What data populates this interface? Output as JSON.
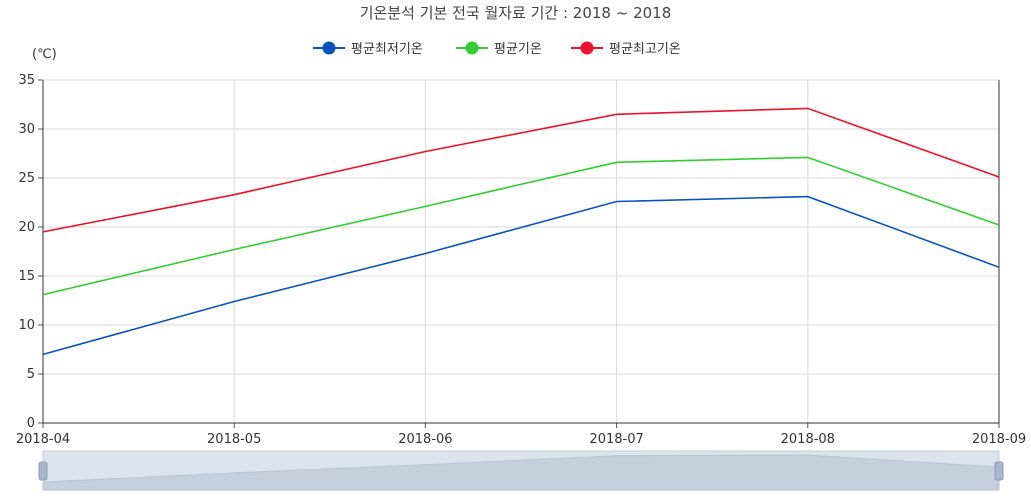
{
  "chart_data": {
    "type": "line",
    "title": "기온분석 기본 전국 월자료 기간 : 2018 ~ 2018",
    "ylabel": "(℃)",
    "xlabel": "",
    "categories": [
      "2018-04",
      "2018-05",
      "2018-06",
      "2018-07",
      "2018-08",
      "2018-09"
    ],
    "ylim": [
      0,
      35
    ],
    "yticks": [
      "0",
      "5",
      "10",
      "15",
      "20",
      "25",
      "30",
      "35"
    ],
    "grid": true,
    "legend_position": "top-center",
    "series": [
      {
        "name": "평균최저기온",
        "color": "#0b52c1",
        "values": [
          7.0,
          12.4,
          17.3,
          22.6,
          23.1,
          15.9
        ]
      },
      {
        "name": "평균기온",
        "color": "#33cc33",
        "values": [
          13.1,
          17.7,
          22.1,
          26.6,
          27.1,
          20.2
        ]
      },
      {
        "name": "평균최고기온",
        "color": "#e8142c",
        "values": [
          19.5,
          23.3,
          27.7,
          31.5,
          32.1,
          25.1
        ]
      }
    ]
  }
}
